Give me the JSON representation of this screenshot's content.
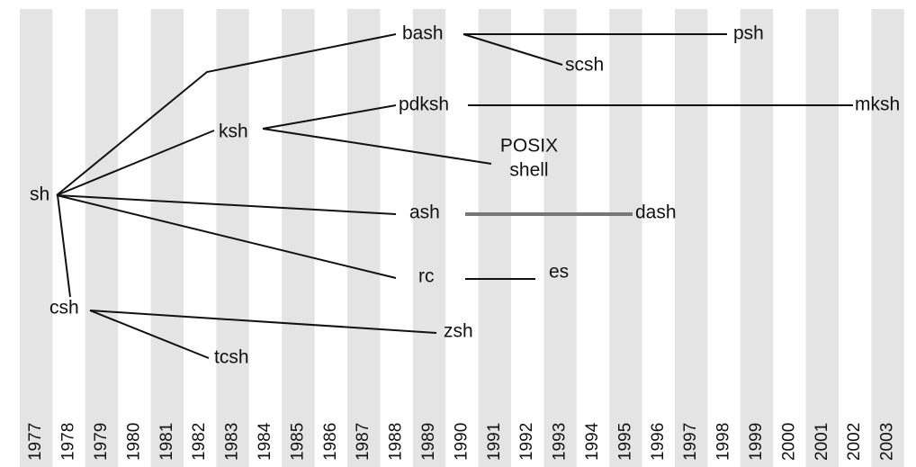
{
  "years": [
    "1977",
    "1978",
    "1979",
    "1980",
    "1981",
    "1982",
    "1983",
    "1984",
    "1985",
    "1986",
    "1987",
    "1988",
    "1989",
    "1990",
    "1991",
    "1992",
    "1993",
    "1994",
    "1995",
    "1996",
    "1997",
    "1998",
    "1999",
    "2000",
    "2001",
    "2002",
    "2003"
  ],
  "nodes": [
    {
      "label": "sh"
    },
    {
      "label": "csh"
    },
    {
      "label": "ksh"
    },
    {
      "label": "bash"
    },
    {
      "label": "pdksh"
    },
    {
      "label": [
        "POSIX",
        "shell"
      ]
    },
    {
      "label": "ash"
    },
    {
      "label": "rc"
    },
    {
      "label": "zsh"
    },
    {
      "label": "tcsh"
    },
    {
      "label": "scsh"
    },
    {
      "label": "psh"
    },
    {
      "label": "mksh"
    },
    {
      "label": "dash"
    },
    {
      "label": "es"
    }
  ]
}
